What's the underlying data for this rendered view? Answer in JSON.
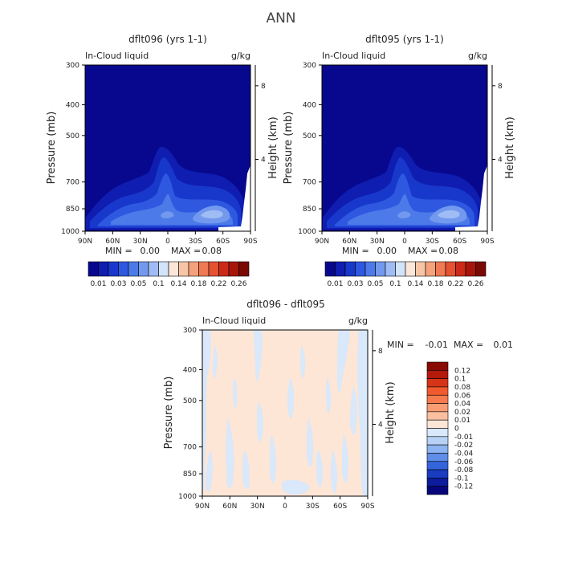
{
  "page_title": "ANN",
  "chart_data": [
    {
      "type": "heatmap",
      "title": "dflt096 (yrs 1-1)",
      "field_label": "In-Cloud liquid",
      "units": "g/kg",
      "ylabel": "Pressure (mb)",
      "ylabel_right": "Height (km)",
      "x_ticks": [
        "90N",
        "60N",
        "30N",
        "0",
        "30S",
        "60S",
        "90S"
      ],
      "y_ticks": [
        "300",
        "400",
        "500",
        "700",
        "850",
        "1000"
      ],
      "y2_ticks": [
        "8",
        "4"
      ],
      "min_label": "MIN =",
      "min_value": "0.00",
      "max_label": "MAX =",
      "max_value": "0.08",
      "colorbar_labels": [
        "0.01",
        "0.03",
        "0.05",
        "0.1",
        "0.14",
        "0.18",
        "0.22",
        "0.26"
      ],
      "colorbar_colors": [
        "#08088e",
        "#0f1db0",
        "#1838cc",
        "#2e58e0",
        "#4c7ae8",
        "#7399ef",
        "#a0bcf4",
        "#d3e3f9",
        "#fbe6d8",
        "#f7c5a6",
        "#f4a27c",
        "#ef7a54",
        "#e45232",
        "#cc2a18",
        "#a8150b",
        "#7b0903"
      ]
    },
    {
      "type": "heatmap",
      "title": "dflt095 (yrs 1-1)",
      "field_label": "In-Cloud liquid",
      "units": "g/kg",
      "ylabel": "Pressure (mb)",
      "ylabel_right": "Height (km)",
      "x_ticks": [
        "90N",
        "60N",
        "30N",
        "0",
        "30S",
        "60S",
        "90S"
      ],
      "y_ticks": [
        "300",
        "400",
        "500",
        "700",
        "850",
        "1000"
      ],
      "y2_ticks": [
        "8",
        "4"
      ],
      "min_label": "MIN =",
      "min_value": "0.00",
      "max_label": "MAX =",
      "max_value": "0.08",
      "colorbar_labels": [
        "0.01",
        "0.03",
        "0.05",
        "0.1",
        "0.14",
        "0.18",
        "0.22",
        "0.26"
      ],
      "colorbar_colors": [
        "#08088e",
        "#0f1db0",
        "#1838cc",
        "#2e58e0",
        "#4c7ae8",
        "#7399ef",
        "#a0bcf4",
        "#d3e3f9",
        "#fbe6d8",
        "#f7c5a6",
        "#f4a27c",
        "#ef7a54",
        "#e45232",
        "#cc2a18",
        "#a8150b",
        "#7b0903"
      ]
    },
    {
      "type": "heatmap",
      "title": "dflt096 - dflt095",
      "field_label": "In-Cloud liquid",
      "units": "g/kg",
      "ylabel": "Pressure (mb)",
      "ylabel_right": "Height (km)",
      "x_ticks": [
        "90N",
        "60N",
        "30N",
        "0",
        "30S",
        "60S",
        "90S"
      ],
      "y_ticks": [
        "300",
        "400",
        "500",
        "700",
        "850",
        "1000"
      ],
      "y2_ticks": [
        "8",
        "4"
      ],
      "min_label": "MIN =",
      "min_value": "-0.01",
      "max_label": "MAX =",
      "max_value": "0.01",
      "colorbar_labels": [
        "0.12",
        "0.1",
        "0.08",
        "0.06",
        "0.04",
        "0.02",
        "0.01",
        "0",
        "-0.01",
        "-0.02",
        "-0.04",
        "-0.06",
        "-0.08",
        "-0.1",
        "-0.12"
      ],
      "colorbar_colors": [
        "#8a0a04",
        "#b41a0c",
        "#d63418",
        "#f05a2e",
        "#f67a4e",
        "#f89c74",
        "#fbbfa0",
        "#fde6d6",
        "#d9e8fa",
        "#b7d2f6",
        "#8db3f0",
        "#5f8de8",
        "#3464dc",
        "#1a3cc0",
        "#0c1c9c",
        "#06067a"
      ]
    }
  ]
}
